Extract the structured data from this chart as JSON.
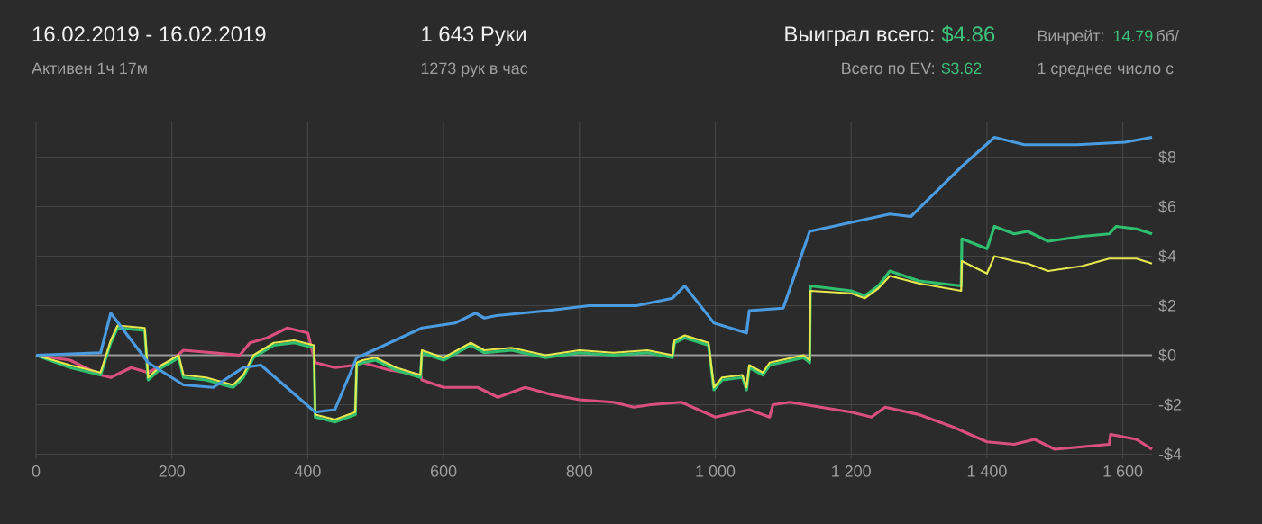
{
  "chart_data": {
    "type": "line",
    "title": "16.02.2019 - 16.02.2019",
    "subtitle": "Активен 1ч 17м",
    "annotations": [
      "1 643 Руки",
      "1273 рук в час",
      "Выиграл всего:",
      "$4.86",
      "Всего по EV:",
      "$3.62",
      "Винрейт:",
      "14.79",
      "бб/",
      "1 среднее число с"
    ],
    "xlim": [
      0,
      1643
    ],
    "ylim": [
      -4.2,
      9.4
    ],
    "xticks": [
      {
        "value": 0,
        "label": "0"
      },
      200,
      400,
      600,
      800,
      {
        "value": 1000,
        "label": "1 000"
      },
      {
        "value": 1200,
        "label": "1 200"
      },
      {
        "value": 1400,
        "label": "1 400"
      },
      {
        "value": 1600,
        "label": "1 600"
      }
    ],
    "yticks": [
      {
        "value": -4,
        "label": "-$4"
      },
      {
        "value": -2,
        "label": "-$2"
      },
      {
        "value": 0,
        "label": "$0"
      },
      {
        "value": 2,
        "label": "$2"
      },
      {
        "value": 4,
        "label": "$4"
      },
      {
        "value": 6,
        "label": "$6"
      },
      {
        "value": 8,
        "label": "$8"
      }
    ],
    "grid": true,
    "marker": "none",
    "line_style": "solid",
    "ref_lines": [
      {
        "axis": "y",
        "value": 0,
        "color": "#9a9a9a"
      }
    ],
    "series": [
      {
        "color": "#d9507f",
        "x": [
          0,
          50,
          95,
          110,
          140,
          165,
          200,
          217,
          260,
          300,
          315,
          340,
          370,
          400,
          411,
          440,
          470,
          481,
          520,
          566,
          568,
          600,
          650,
          680,
          720,
          760,
          800,
          850,
          880,
          905,
          950,
          1000,
          1050,
          1080,
          1085,
          1110,
          1200,
          1230,
          1250,
          1300,
          1350,
          1400,
          1440,
          1470,
          1500,
          1580,
          1582,
          1620,
          1643
        ],
        "values": [
          0,
          -0.2,
          -0.8,
          -0.9,
          -0.5,
          -0.7,
          -0.2,
          0.2,
          0.1,
          0.0,
          0.5,
          0.7,
          1.1,
          0.9,
          -0.3,
          -0.5,
          -0.4,
          -0.3,
          -0.6,
          -0.8,
          -1.0,
          -1.3,
          -1.3,
          -1.7,
          -1.3,
          -1.6,
          -1.8,
          -1.9,
          -2.1,
          -2.0,
          -1.9,
          -2.5,
          -2.2,
          -2.5,
          -2.0,
          -1.9,
          -2.3,
          -2.5,
          -2.1,
          -2.4,
          -2.9,
          -3.5,
          -3.6,
          -3.4,
          -3.8,
          -3.6,
          -3.2,
          -3.4,
          -3.8
        ]
      },
      {
        "color": "#2fbf6f",
        "x": [
          0,
          50,
          95,
          110,
          120,
          160,
          165,
          185,
          210,
          217,
          250,
          290,
          305,
          320,
          350,
          380,
          409,
          411,
          440,
          470,
          472,
          481,
          500,
          530,
          566,
          568,
          600,
          640,
          660,
          700,
          750,
          800,
          850,
          900,
          937,
          940,
          955,
          990,
          998,
          1010,
          1040,
          1046,
          1050,
          1070,
          1080,
          1130,
          1139,
          1140,
          1200,
          1220,
          1240,
          1257,
          1300,
          1362,
          1363,
          1400,
          1411,
          1440,
          1460,
          1490,
          1540,
          1580,
          1590,
          1620,
          1643
        ],
        "values": [
          0,
          -0.5,
          -0.8,
          0.5,
          1.1,
          1.0,
          -1.0,
          -0.5,
          -0.1,
          -0.9,
          -1.0,
          -1.3,
          -0.9,
          -0.1,
          0.4,
          0.5,
          0.3,
          -2.5,
          -2.7,
          -2.4,
          -0.4,
          -0.3,
          -0.2,
          -0.6,
          -0.9,
          0.1,
          -0.2,
          0.4,
          0.1,
          0.2,
          -0.1,
          0.1,
          0.0,
          0.1,
          -0.1,
          0.5,
          0.7,
          0.4,
          -1.4,
          -1.0,
          -0.9,
          -1.4,
          -0.5,
          -0.8,
          -0.4,
          -0.1,
          -0.3,
          2.8,
          2.6,
          2.4,
          2.8,
          3.4,
          3.0,
          2.8,
          4.7,
          4.3,
          5.2,
          4.9,
          5.0,
          4.6,
          4.8,
          4.9,
          5.2,
          5.1,
          4.9
        ]
      },
      {
        "color": "#e6e84f",
        "x": [
          0,
          50,
          95,
          110,
          120,
          160,
          165,
          185,
          210,
          217,
          250,
          290,
          305,
          320,
          350,
          380,
          409,
          411,
          440,
          470,
          472,
          481,
          500,
          530,
          566,
          568,
          600,
          640,
          660,
          700,
          750,
          800,
          850,
          900,
          937,
          940,
          955,
          990,
          998,
          1010,
          1040,
          1046,
          1050,
          1070,
          1080,
          1130,
          1139,
          1140,
          1200,
          1220,
          1240,
          1257,
          1300,
          1362,
          1363,
          1400,
          1411,
          1440,
          1460,
          1490,
          1540,
          1580,
          1620,
          1643
        ],
        "values": [
          0,
          -0.4,
          -0.7,
          0.6,
          1.2,
          1.1,
          -0.9,
          -0.4,
          0,
          -0.8,
          -0.9,
          -1.2,
          -0.8,
          0,
          0.5,
          0.6,
          0.4,
          -2.4,
          -2.6,
          -2.3,
          -0.3,
          -0.2,
          -0.1,
          -0.5,
          -0.8,
          0.2,
          -0.1,
          0.5,
          0.2,
          0.3,
          0.0,
          0.2,
          0.1,
          0.2,
          0.0,
          0.6,
          0.8,
          0.5,
          -1.3,
          -0.9,
          -0.8,
          -1.3,
          -0.4,
          -0.7,
          -0.3,
          0.0,
          -0.2,
          2.6,
          2.5,
          2.3,
          2.7,
          3.2,
          2.9,
          2.6,
          3.8,
          3.3,
          4.0,
          3.8,
          3.7,
          3.4,
          3.6,
          3.9,
          3.9,
          3.7
        ]
      },
      {
        "color": "#4a9be0",
        "x": [
          0,
          95,
          110,
          165,
          217,
          261,
          305,
          331,
          411,
          440,
          472,
          481,
          568,
          617,
          647,
          660,
          678,
          753,
          814,
          884,
          937,
          955,
          998,
          1046,
          1050,
          1100,
          1139,
          1257,
          1288,
          1362,
          1411,
          1455,
          1533,
          1603,
          1643
        ],
        "values": [
          0,
          0.1,
          1.7,
          -0.3,
          -1.2,
          -1.3,
          -0.5,
          -0.4,
          -2.3,
          -2.2,
          -0.1,
          0,
          1.1,
          1.3,
          1.7,
          1.5,
          1.6,
          1.8,
          2.0,
          2.0,
          2.3,
          2.8,
          1.3,
          0.9,
          1.8,
          1.9,
          5.0,
          5.7,
          5.6,
          7.6,
          8.8,
          8.5,
          8.5,
          8.6,
          8.8
        ]
      }
    ]
  }
}
